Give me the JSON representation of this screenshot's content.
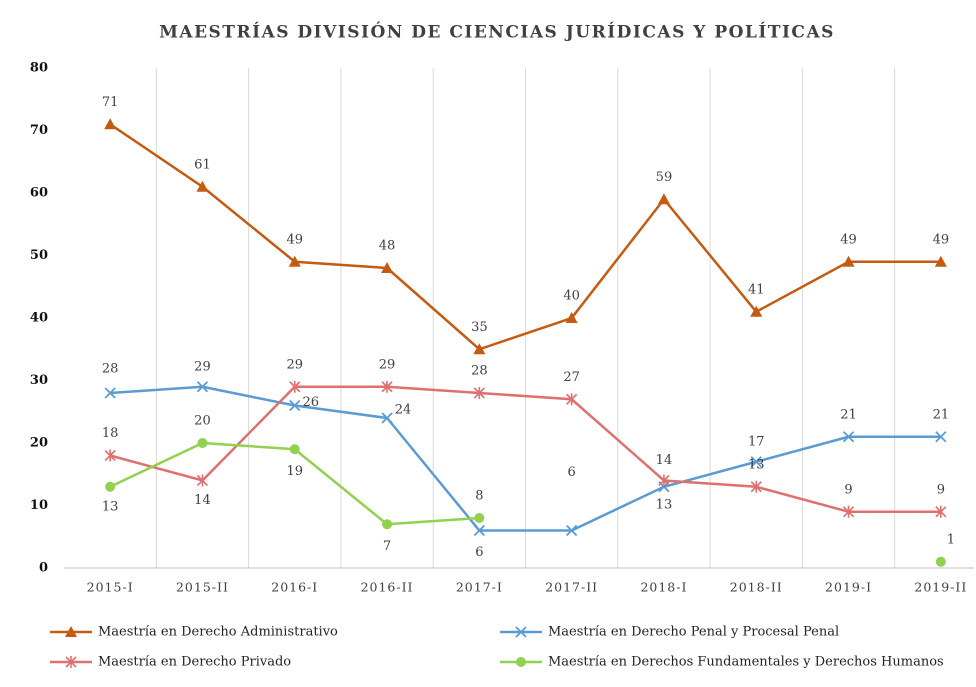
{
  "chart_data": {
    "type": "line",
    "title": "MAESTRÍAS DIVISIÓN DE CIENCIAS JURÍDICAS Y POLÍTICAS",
    "categories": [
      "2015-I",
      "2015-II",
      "2016-I",
      "2016-II",
      "2017-I",
      "2017-II",
      "2018-I",
      "2018-II",
      "2019-I",
      "2019-II"
    ],
    "series": [
      {
        "name": "Maestría en Derecho Administrativo",
        "color": "#c55a11",
        "marker": "triangle",
        "values": [
          71,
          61,
          49,
          48,
          35,
          40,
          59,
          41,
          49,
          49
        ]
      },
      {
        "name": "Maestría en Derecho Penal y Procesal Penal",
        "color": "#5b9bd5",
        "marker": "x",
        "values": [
          28,
          29,
          26,
          24,
          6,
          6,
          13,
          17,
          21,
          21
        ]
      },
      {
        "name": "Maestría en Derecho Privado",
        "color": "#e07070",
        "marker": "star",
        "values": [
          18,
          14,
          29,
          29,
          28,
          27,
          14,
          13,
          9,
          9
        ]
      },
      {
        "name": "Maestría en Derechos Fundamentales y Derechos Humanos",
        "color": "#92d050",
        "marker": "circle",
        "values": [
          13,
          20,
          19,
          7,
          8,
          null,
          null,
          null,
          null,
          1
        ]
      }
    ],
    "ylim": [
      0,
      80
    ],
    "yticks": [
      0,
      10,
      20,
      30,
      40,
      50,
      60,
      70,
      80
    ],
    "grid": true,
    "legend": "bottom"
  }
}
